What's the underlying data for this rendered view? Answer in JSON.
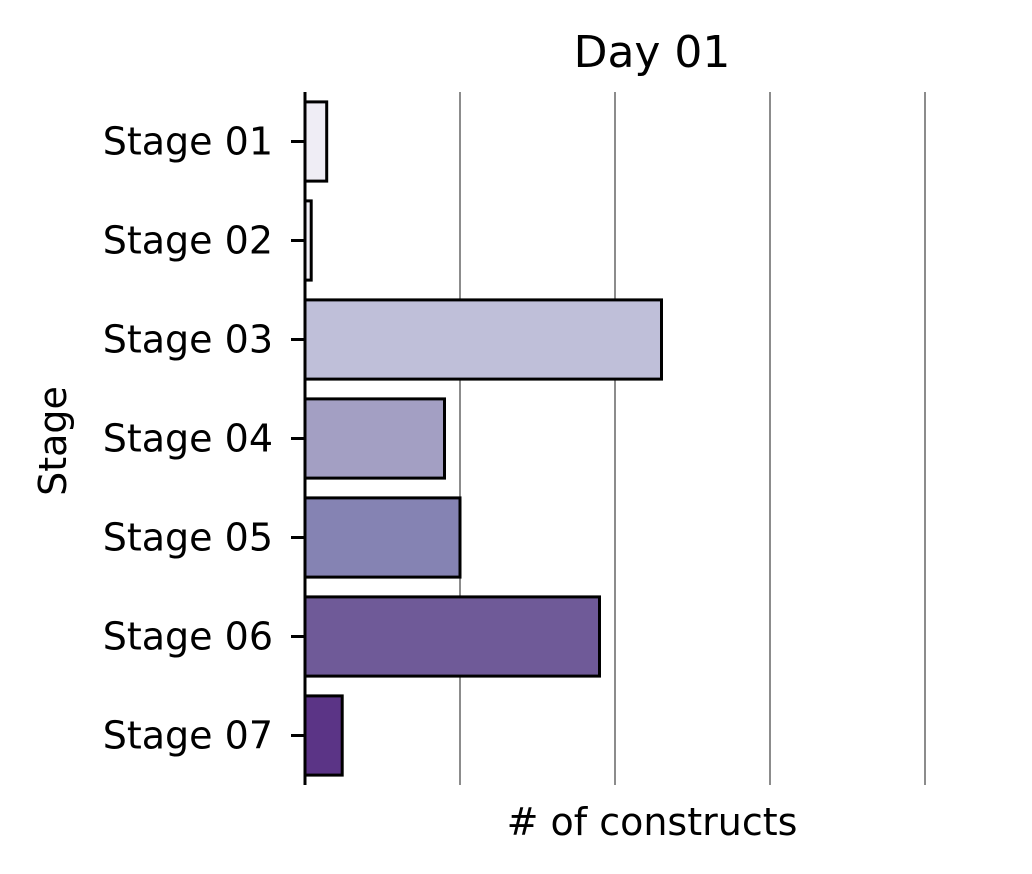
{
  "chart_data": {
    "type": "bar",
    "orientation": "horizontal",
    "title": "Day 01",
    "xlabel": "# of constructs",
    "ylabel": "Stage",
    "categories": [
      "Stage 01",
      "Stage 02",
      "Stage 03",
      "Stage 04",
      "Stage 05",
      "Stage 06",
      "Stage 07"
    ],
    "values": [
      0.7,
      0.2,
      11.5,
      4.5,
      5.0,
      9.5,
      1.2
    ],
    "xlim": [
      0,
      20
    ],
    "x_tick_labels_visible": false,
    "grid": "vertical",
    "legend": "none",
    "colors": [
      "#efedf5",
      "#f2f0f7",
      "#bfbfd9",
      "#a39fc3",
      "#8583b3",
      "#6f5a98",
      "#5b3486"
    ]
  }
}
